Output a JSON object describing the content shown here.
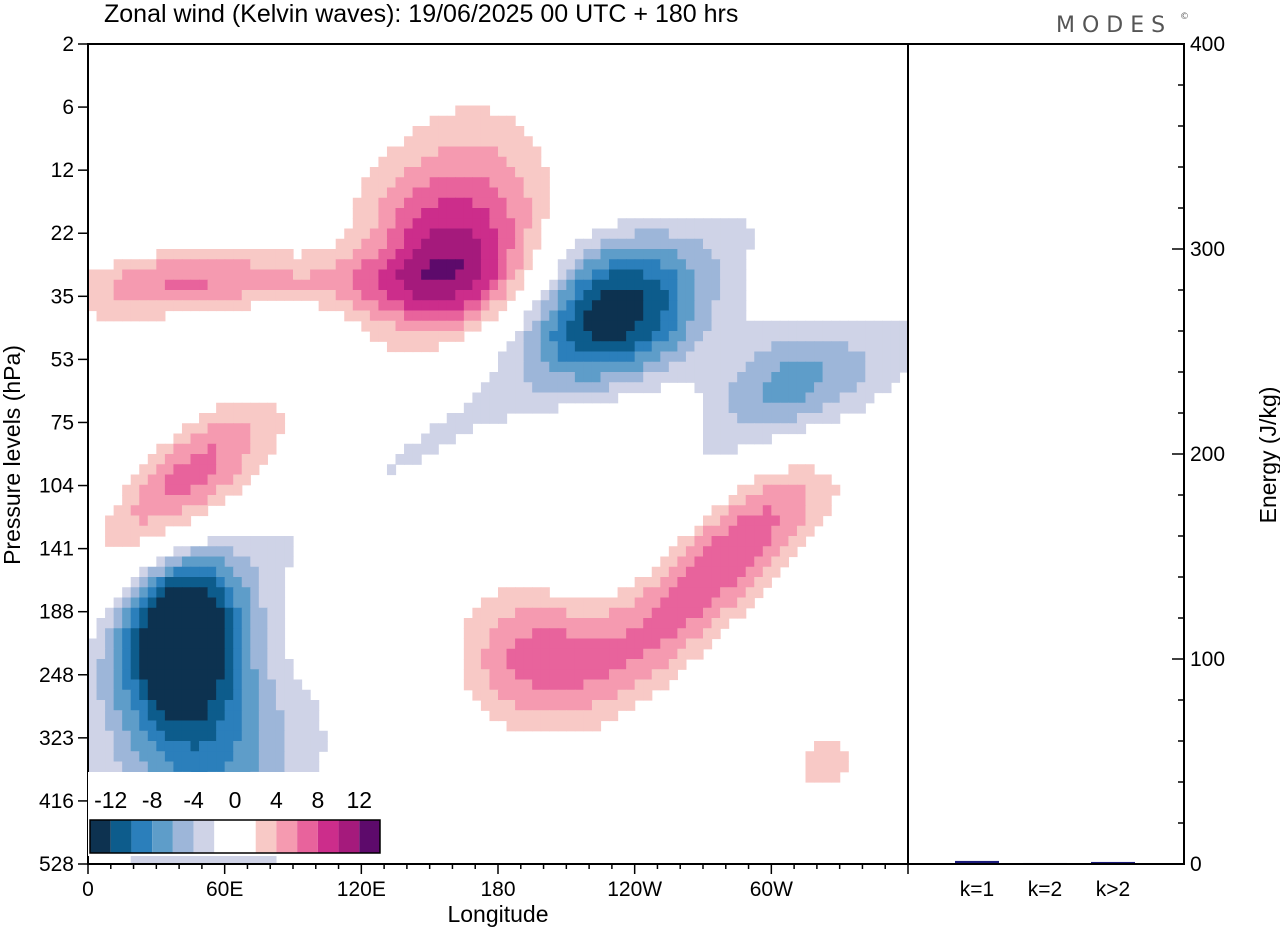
{
  "title": "Zonal wind (Kelvin waves):  19/06/2025  00 UTC  + 180 hrs",
  "logo_text": "MODES",
  "logo_mark": "©",
  "chart_data": [
    {
      "type": "heatmap",
      "title": "Zonal wind (Kelvin waves):  19/06/2025  00 UTC  + 180 hrs",
      "xlabel": "Longitude",
      "ylabel": "Pressure levels (hPa)",
      "x_ticks": [
        "0",
        "60E",
        "120E",
        "180",
        "120W",
        "60W"
      ],
      "x_tick_degrees": [
        0,
        60,
        120,
        180,
        240,
        300
      ],
      "xlim": [
        0,
        360
      ],
      "y_ticks": [
        "2",
        "6",
        "12",
        "22",
        "35",
        "53",
        "75",
        "104",
        "141",
        "188",
        "248",
        "323",
        "416",
        "528"
      ],
      "y_scale": "pressure levels, top-down",
      "colorbar": {
        "labels": [
          "-12",
          "-8",
          "-4",
          "0",
          "4",
          "8",
          "12"
        ],
        "levels": [
          -14,
          -12,
          -10,
          -8,
          -6,
          -4,
          -2,
          2,
          4,
          6,
          8,
          10,
          12,
          14
        ],
        "colors": [
          "#0d3250",
          "#0d5c8c",
          "#2b7fbb",
          "#5e9dc9",
          "#9db6d9",
          "#cfd3e7",
          "#ffffff",
          "#ffffff",
          "#f8c9c6",
          "#f59ab0",
          "#e8639c",
          "#cc2d8b",
          "#a51a7c",
          "#5d0a6b"
        ],
        "placement": "bottom-left"
      },
      "features": [
        {
          "sign": "positive",
          "lon": 70,
          "lev": 3.8,
          "peak": 7,
          "desc": "upper band"
        },
        {
          "sign": "positive",
          "lon": 155,
          "lev": 3.2,
          "peak": 12
        },
        {
          "sign": "negative",
          "lon": 230,
          "lev": 4.2,
          "peak": -12
        },
        {
          "sign": "negative",
          "lon": 40,
          "lev": 9.3,
          "peak": -14
        },
        {
          "sign": "negative",
          "lon": 50,
          "lev": 11,
          "peak": -8
        },
        {
          "sign": "positive",
          "lon": 40,
          "lev": 7.0,
          "peak": 8
        },
        {
          "sign": "positive",
          "lon": 195,
          "lev": 9.6,
          "peak": 9
        },
        {
          "sign": "positive",
          "lon": 260,
          "lev": 8.9,
          "peak": 6
        },
        {
          "sign": "positive",
          "lon": 305,
          "lev": 7.0,
          "peak": 6
        },
        {
          "sign": "negative",
          "lon": 310,
          "lev": 5.4,
          "peak": -7
        },
        {
          "sign": "positive",
          "lon": 180,
          "lev": 1.8,
          "peak": 5
        },
        {
          "sign": "positive",
          "lon": 325,
          "lev": 11.5,
          "peak": 4
        }
      ]
    },
    {
      "type": "bar",
      "ylabel": "Energy (J/kg)",
      "categories": [
        "k=1",
        "k=2",
        "k>2"
      ],
      "values": [
        1.5,
        0.5,
        1.0
      ],
      "ylim": [
        0,
        400
      ],
      "y_ticks": [
        "0",
        "100",
        "200",
        "300",
        "400"
      ],
      "y_tick_values": [
        0,
        100,
        200,
        300,
        400
      ],
      "bar_color": "#1a1a7a"
    }
  ]
}
